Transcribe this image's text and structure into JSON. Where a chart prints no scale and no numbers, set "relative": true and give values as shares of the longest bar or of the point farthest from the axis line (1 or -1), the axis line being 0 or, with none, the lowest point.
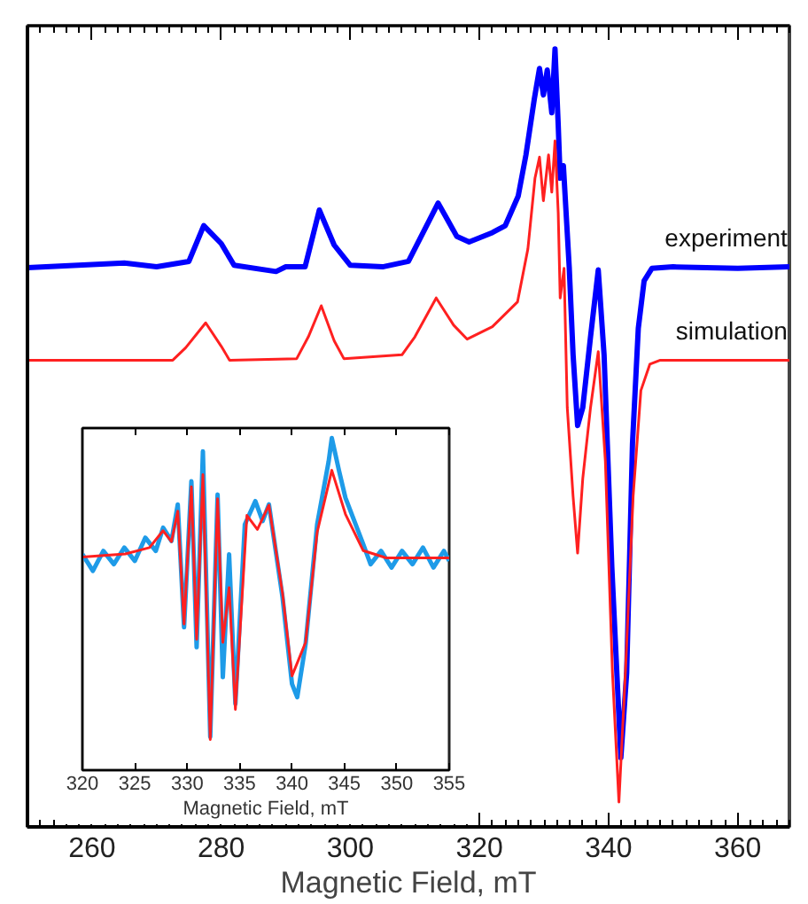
{
  "chart_data": [
    {
      "type": "line",
      "xlabel": "Magnetic Field, mT",
      "xlim": [
        250,
        368
      ],
      "xticks": [
        260,
        280,
        300,
        320,
        340,
        360
      ],
      "relative": true,
      "tick_labels": "x",
      "series": [
        {
          "name": "experiment",
          "color": "#0000ff",
          "x": [
            250,
            265,
            270,
            275,
            277.3,
            280,
            282,
            288.5,
            290,
            293,
            295.2,
            297.5,
            300,
            305,
            309,
            313.6,
            316.5,
            318.4,
            322,
            324,
            326,
            327.2,
            328.5,
            329.3,
            329.9,
            330.5,
            331.2,
            331.7,
            332.2,
            332.5,
            333,
            333.9,
            334.5,
            335.2,
            336,
            337.2,
            338.4,
            339.3,
            340.5,
            341.9,
            342.8,
            343.7,
            344.6,
            345.5,
            346.7,
            350,
            360,
            368
          ],
          "values": [
            0.719,
            0.725,
            0.72,
            0.727,
            0.773,
            0.75,
            0.722,
            0.714,
            0.72,
            0.72,
            0.793,
            0.748,
            0.722,
            0.72,
            0.727,
            0.802,
            0.759,
            0.752,
            0.764,
            0.773,
            0.811,
            0.864,
            0.936,
            0.975,
            0.941,
            0.973,
            0.918,
            1.0,
            0.902,
            0.834,
            0.85,
            0.72,
            0.607,
            0.516,
            0.539,
            0.63,
            0.716,
            0.607,
            0.334,
            0.089,
            0.198,
            0.493,
            0.641,
            0.702,
            0.718,
            0.72,
            0.718,
            0.72
          ]
        },
        {
          "name": "simulation",
          "color": "#ff2020",
          "x": [
            250,
            272.5,
            274.5,
            277.6,
            280,
            281.3,
            291.7,
            293.5,
            295.5,
            297.5,
            299,
            308,
            310,
            313.3,
            316,
            318.1,
            322,
            325.9,
            327.5,
            328.6,
            329.3,
            329.9,
            330.7,
            331.2,
            331.7,
            332.2,
            332.5,
            333.1,
            333.6,
            334.5,
            335.2,
            336,
            337.2,
            338.4,
            339.5,
            340.6,
            341.6,
            342.6,
            343.8,
            345,
            346.4,
            348,
            368
          ],
          "values": [
            0.6,
            0.6,
            0.616,
            0.648,
            0.618,
            0.6,
            0.602,
            0.63,
            0.67,
            0.625,
            0.602,
            0.607,
            0.63,
            0.68,
            0.645,
            0.627,
            0.643,
            0.675,
            0.743,
            0.834,
            0.861,
            0.805,
            0.864,
            0.816,
            0.882,
            0.789,
            0.68,
            0.718,
            0.539,
            0.425,
            0.352,
            0.448,
            0.539,
            0.611,
            0.47,
            0.198,
            0.032,
            0.198,
            0.425,
            0.561,
            0.595,
            0.6,
            0.6
          ]
        }
      ]
    },
    {
      "type": "line",
      "xlabel": "Magnetic Field, mT",
      "xlim": [
        320,
        355
      ],
      "xticks": [
        320,
        325,
        330,
        335,
        340,
        345,
        350,
        355
      ],
      "relative": true,
      "tick_labels": "x",
      "series": [
        {
          "color": "#1e9be8",
          "x": [
            320,
            321,
            322,
            323,
            324,
            325,
            326,
            327,
            327.7,
            328.5,
            329.1,
            329.7,
            330.4,
            330.9,
            331.5,
            332.2,
            332.9,
            333.4,
            334.0,
            334.6,
            335.5,
            336.5,
            337.2,
            337.8,
            339.1,
            340.0,
            340.5,
            341.3,
            342.4,
            343.5,
            343.8,
            344.5,
            345.1,
            346.8,
            347.5,
            348.5,
            349.5,
            350.5,
            351.5,
            352.5,
            353.5,
            354.5,
            355
          ],
          "values": [
            0.65,
            0.6,
            0.66,
            0.62,
            0.67,
            0.63,
            0.7,
            0.66,
            0.73,
            0.69,
            0.8,
            0.43,
            0.87,
            0.37,
            0.96,
            0.1,
            0.83,
            0.28,
            0.65,
            0.2,
            0.74,
            0.81,
            0.75,
            0.8,
            0.52,
            0.26,
            0.22,
            0.38,
            0.74,
            0.93,
            1.0,
            0.9,
            0.82,
            0.68,
            0.62,
            0.66,
            0.61,
            0.66,
            0.62,
            0.67,
            0.61,
            0.66,
            0.63
          ]
        },
        {
          "color": "#ff2020",
          "x": [
            320,
            324.1,
            326.4,
            327.7,
            328.5,
            329.1,
            329.7,
            330.4,
            330.9,
            331.5,
            332.2,
            332.9,
            333.4,
            334.0,
            334.6,
            335.7,
            336.7,
            337.8,
            339.1,
            340.0,
            341.3,
            342.4,
            343.8,
            345.1,
            346.8,
            349.0,
            355
          ],
          "values": [
            0.642,
            0.651,
            0.67,
            0.721,
            0.688,
            0.78,
            0.44,
            0.853,
            0.394,
            0.89,
            0.092,
            0.817,
            0.385,
            0.55,
            0.183,
            0.767,
            0.725,
            0.798,
            0.532,
            0.284,
            0.385,
            0.716,
            0.903,
            0.771,
            0.661,
            0.639,
            0.639
          ]
        }
      ]
    }
  ]
}
